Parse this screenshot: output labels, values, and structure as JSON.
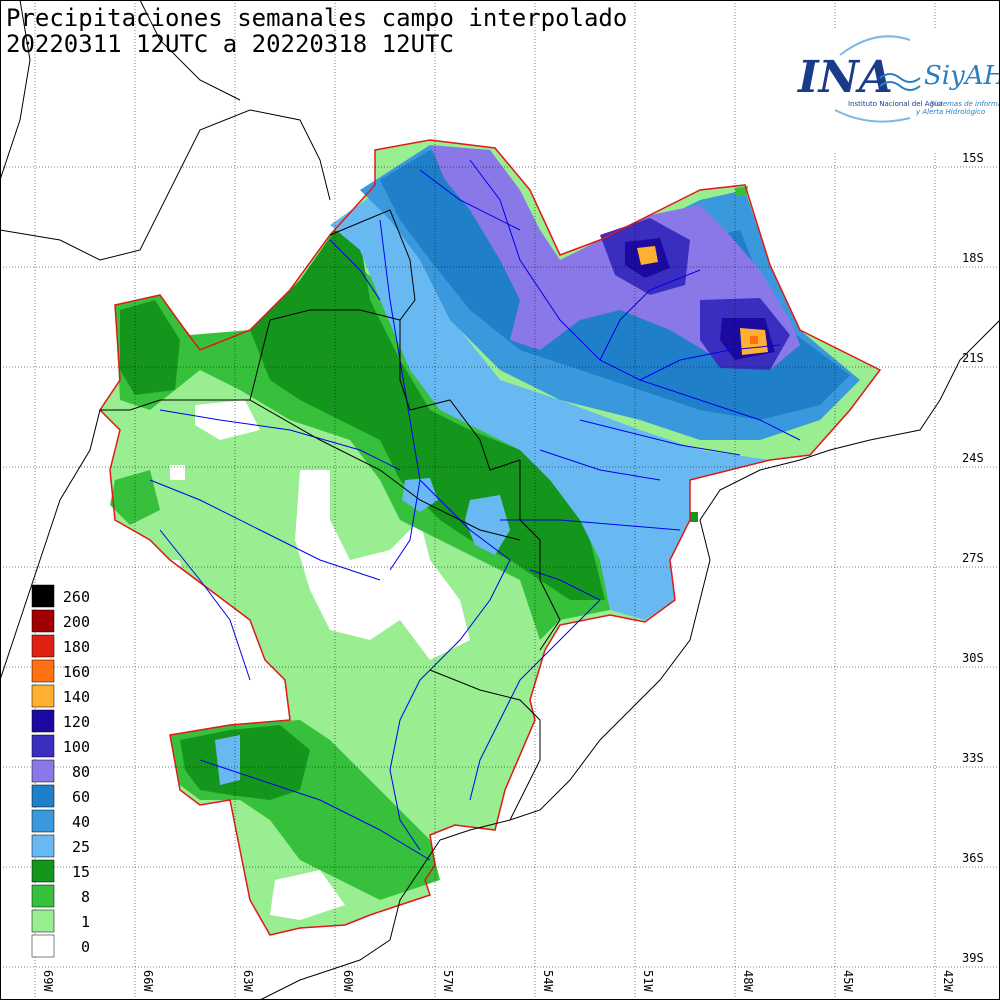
{
  "title": {
    "line1": "Precipitaciones semanales campo interpolado",
    "line2": "20220311 12UTC a 20220318 12UTC"
  },
  "logo": {
    "main": "INA",
    "sub": "SiyAH",
    "caption1": "Instituto Nacional del Agua",
    "caption2": "Sistemas de información",
    "caption3": "y Alerta Hidrológico"
  },
  "lat_labels": [
    "15S",
    "18S",
    "21S",
    "24S",
    "27S",
    "30S",
    "33S",
    "36S",
    "39S"
  ],
  "lon_labels": [
    "69W",
    "66W",
    "63W",
    "60W",
    "57W",
    "54W",
    "51W",
    "48W",
    "45W",
    "42W"
  ],
  "legend": {
    "items": [
      {
        "label": "260",
        "color": "#000000"
      },
      {
        "label": "200",
        "color": "#a00000"
      },
      {
        "label": "180",
        "color": "#e02010"
      },
      {
        "label": "160",
        "color": "#ff7010"
      },
      {
        "label": "140",
        "color": "#ffb030"
      },
      {
        "label": "120",
        "color": "#1c0aa0"
      },
      {
        "label": "100",
        "color": "#3a2ec0"
      },
      {
        "label": "80",
        "color": "#8a78e8"
      },
      {
        "label": "60",
        "color": "#1f7fc8"
      },
      {
        "label": "40",
        "color": "#3a98dd"
      },
      {
        "label": "25",
        "color": "#68b8f2"
      },
      {
        "label": "15",
        "color": "#14961c"
      },
      {
        "label": "8",
        "color": "#36c03c"
      },
      {
        "label": "1",
        "color": "#98ee90"
      },
      {
        "label": "0",
        "color": "#ffffff"
      }
    ]
  },
  "colors": {
    "basin_outline": "#e01818",
    "rivers": "#0000ee",
    "borders": "#000000",
    "grid": "#000000"
  }
}
